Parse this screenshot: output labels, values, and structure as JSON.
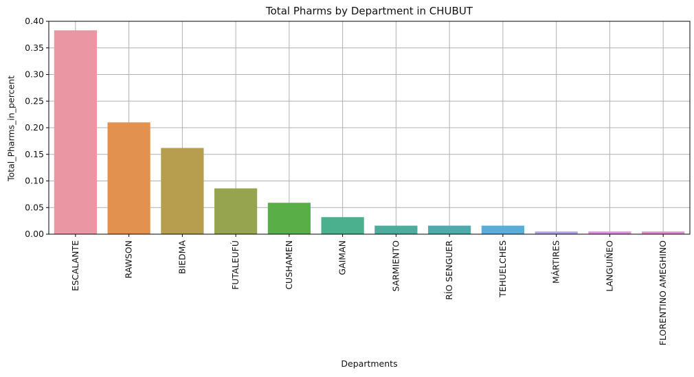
{
  "chart_data": {
    "type": "bar",
    "title": "Total Pharms by Department in CHUBUT",
    "xlabel": "Departments",
    "ylabel": "Total_Pharms_in_percent",
    "categories": [
      "ESCALANTE",
      "RAWSON",
      "BIEDMA",
      "FUTALEUFÚ",
      "CUSHAMEN",
      "GAIMAN",
      "SARMIENTO",
      "RÍO SENGUER",
      "TEHUELCHES",
      "MÁRTIRES",
      "LANGUIÑEO",
      "FLORENTINO AMEGHINO"
    ],
    "values": [
      0.383,
      0.21,
      0.162,
      0.086,
      0.059,
      0.032,
      0.016,
      0.016,
      0.016,
      0.005,
      0.005,
      0.005
    ],
    "colors": [
      "#ea96a3",
      "#e2924e",
      "#b69e4e",
      "#97a44f",
      "#5aae47",
      "#4ab08e",
      "#4dac9e",
      "#4faaac",
      "#5bacd8",
      "#b3a4e9",
      "#e08fe3",
      "#e78fce"
    ],
    "ylim": [
      0,
      0.4
    ],
    "yticks": [
      "0.00",
      "0.05",
      "0.10",
      "0.15",
      "0.20",
      "0.25",
      "0.30",
      "0.35",
      "0.40"
    ],
    "grid": true
  }
}
